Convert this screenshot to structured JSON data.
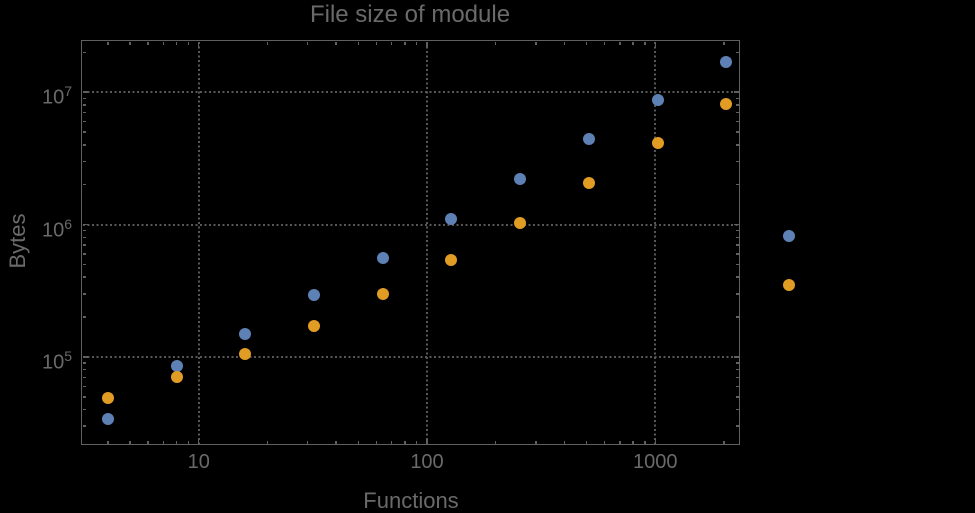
{
  "title": "File size of module",
  "colors": {
    "background": "#000000",
    "frame": "#606060",
    "text": "#6a6a6a",
    "grid": "#585858",
    "series_blue": "#5e81b5",
    "series_orange": "#e19c24"
  },
  "chart_data": {
    "type": "scatter",
    "title": "File size of module",
    "xlabel": "Functions",
    "ylabel": "Bytes",
    "xscale": "log",
    "yscale": "log",
    "xlim": [
      3.05,
      2350
    ],
    "ylim": [
      21600,
      24800000
    ],
    "grid": "major-dotted",
    "legend": "none",
    "x_major_ticks": [
      {
        "value": 10,
        "label": "10"
      },
      {
        "value": 100,
        "label": "100"
      },
      {
        "value": 1000,
        "label": "1000"
      }
    ],
    "y_major_ticks": [
      {
        "value": 100000,
        "base": "10",
        "exp": "5"
      },
      {
        "value": 1000000,
        "base": "10",
        "exp": "6"
      },
      {
        "value": 10000000,
        "base": "10",
        "exp": "7"
      }
    ],
    "series": [
      {
        "name": "series-1-blue",
        "color": "#5e81b5",
        "points": [
          [
            4,
            34000
          ],
          [
            8,
            86000
          ],
          [
            16,
            150000
          ],
          [
            32,
            295000
          ],
          [
            64,
            560000
          ],
          [
            128,
            1100000
          ],
          [
            256,
            2200000
          ],
          [
            512,
            4400000
          ],
          [
            1024,
            8800000
          ],
          [
            2048,
            17000000
          ],
          [
            3850,
            820000
          ]
        ]
      },
      {
        "name": "series-2-orange",
        "color": "#e19c24",
        "points": [
          [
            4,
            49000
          ],
          [
            8,
            70000
          ],
          [
            16,
            106000
          ],
          [
            32,
            170000
          ],
          [
            64,
            300000
          ],
          [
            128,
            540000
          ],
          [
            256,
            1030000
          ],
          [
            512,
            2050000
          ],
          [
            1024,
            4100000
          ],
          [
            2048,
            8100000
          ],
          [
            3850,
            352000
          ]
        ]
      }
    ]
  }
}
